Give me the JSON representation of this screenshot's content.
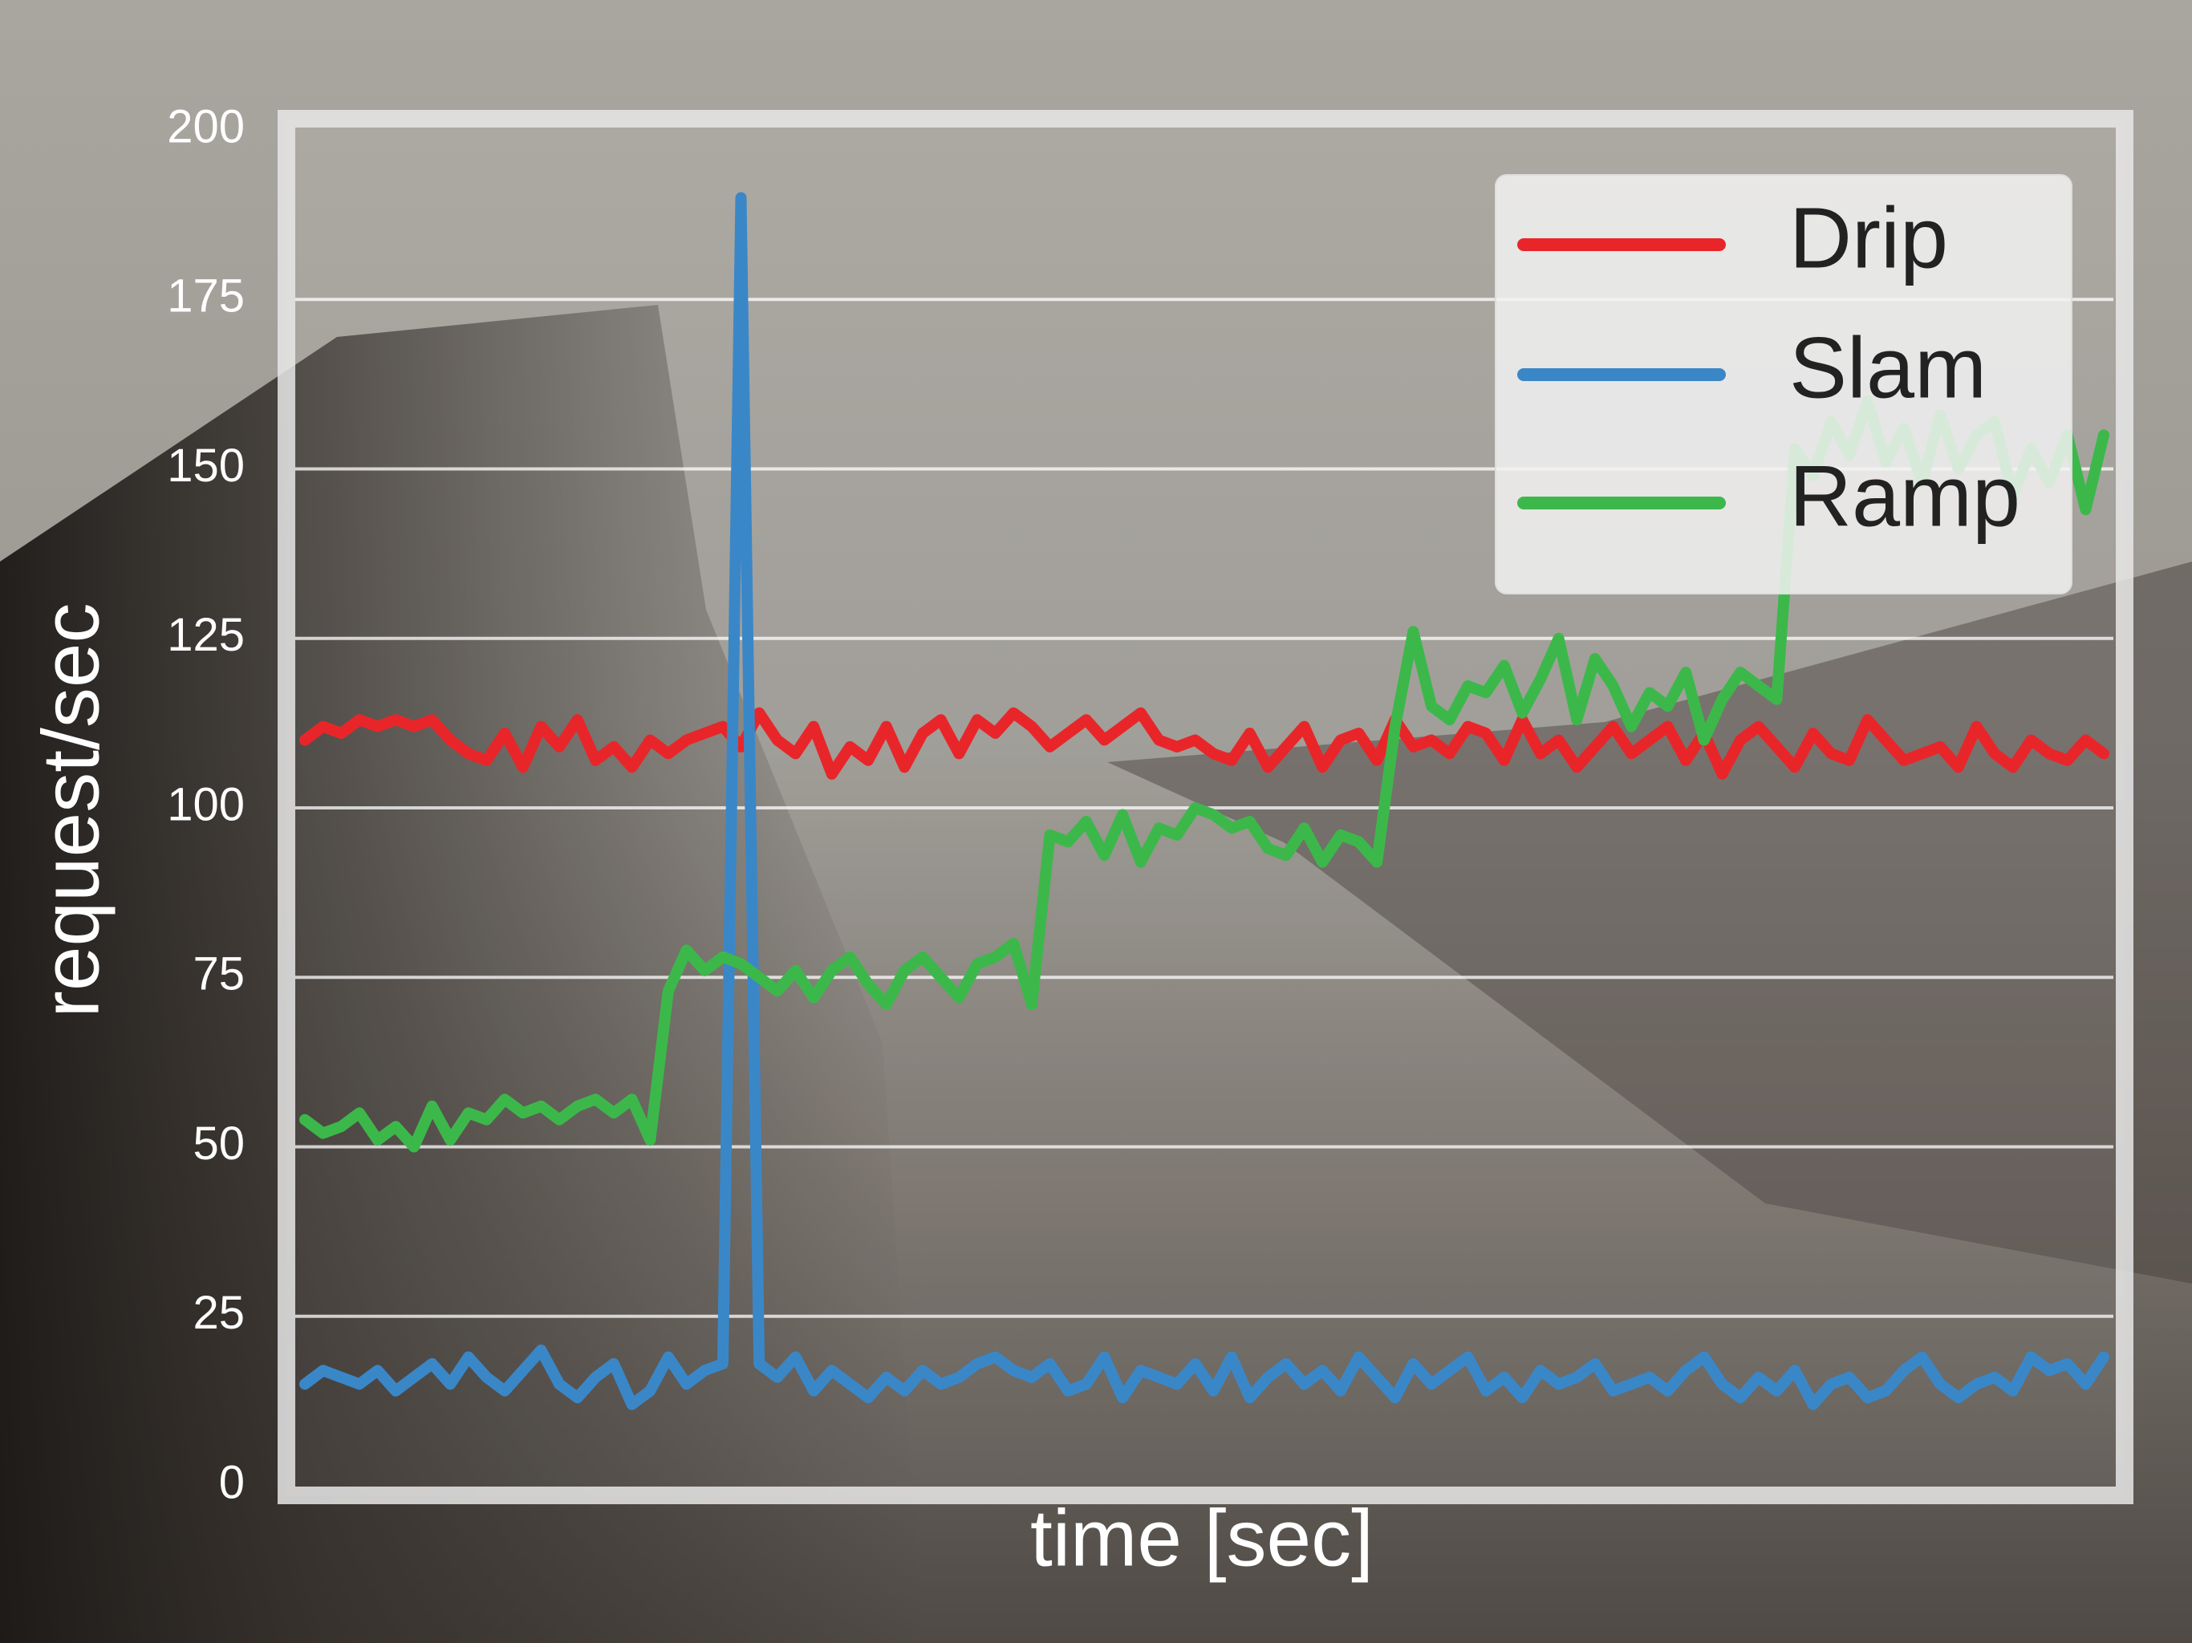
{
  "chart_data": {
    "type": "line",
    "xlabel": "time [sec]",
    "ylabel": "request/sec",
    "ylim": [
      0,
      200
    ],
    "yticks": [
      0,
      25,
      50,
      75,
      100,
      125,
      150,
      175,
      200
    ],
    "grid": true,
    "legend": "upper right",
    "series": [
      {
        "name": "Drip",
        "color": "#e8262a",
        "values": [
          110,
          112,
          111,
          113,
          112,
          113,
          112,
          113,
          110,
          108,
          107,
          111,
          106,
          112,
          109,
          113,
          107,
          109,
          106,
          110,
          108,
          110,
          111,
          112,
          109,
          114,
          110,
          108,
          112,
          105,
          109,
          107,
          112,
          106,
          111,
          113,
          108,
          113,
          111,
          114,
          112,
          109,
          111,
          113,
          110,
          112,
          114,
          110,
          109,
          110,
          108,
          107,
          111,
          106,
          109,
          112,
          106,
          110,
          111,
          107,
          113,
          109,
          110,
          108,
          112,
          111,
          107,
          113,
          108,
          110,
          106,
          109,
          112,
          108,
          110,
          112,
          107,
          111,
          105,
          110,
          112,
          109,
          106,
          111,
          108,
          107,
          113,
          110,
          107,
          108,
          109,
          106,
          112,
          108,
          106,
          110,
          108,
          107,
          110,
          108
        ]
      },
      {
        "name": "Slam",
        "color": "#3a87c8",
        "values": [
          15,
          17,
          16,
          15,
          17,
          14,
          16,
          18,
          15,
          19,
          16,
          14,
          17,
          20,
          15,
          13,
          16,
          18,
          12,
          14,
          19,
          15,
          17,
          18,
          190,
          18,
          16,
          19,
          14,
          17,
          15,
          13,
          16,
          14,
          17,
          15,
          16,
          18,
          19,
          17,
          16,
          18,
          14,
          15,
          19,
          13,
          17,
          16,
          15,
          18,
          14,
          19,
          13,
          16,
          18,
          15,
          17,
          14,
          19,
          16,
          13,
          18,
          15,
          17,
          19,
          14,
          16,
          13,
          17,
          15,
          16,
          18,
          14,
          15,
          16,
          14,
          17,
          19,
          15,
          13,
          16,
          14,
          17,
          12,
          15,
          16,
          13,
          14,
          17,
          19,
          15,
          13,
          15,
          16,
          14,
          19,
          17,
          18,
          15,
          19
        ]
      },
      {
        "name": "Ramp",
        "color": "#3cb84a",
        "values": [
          54,
          52,
          53,
          55,
          51,
          53,
          50,
          56,
          51,
          55,
          54,
          57,
          55,
          56,
          54,
          56,
          57,
          55,
          57,
          51,
          73,
          79,
          76,
          78,
          77,
          75,
          73,
          76,
          72,
          76,
          78,
          74,
          71,
          76,
          78,
          75,
          72,
          77,
          78,
          80,
          71,
          96,
          95,
          98,
          93,
          99,
          92,
          97,
          96,
          100,
          99,
          97,
          98,
          94,
          93,
          97,
          92,
          96,
          95,
          92,
          112,
          126,
          115,
          113,
          118,
          117,
          121,
          114,
          119,
          125,
          113,
          122,
          118,
          112,
          117,
          115,
          120,
          110,
          116,
          120,
          118,
          116,
          153,
          149,
          157,
          152,
          160,
          151,
          156,
          148,
          158,
          150,
          155,
          157,
          146,
          153,
          148,
          155,
          144,
          155
        ]
      }
    ]
  }
}
